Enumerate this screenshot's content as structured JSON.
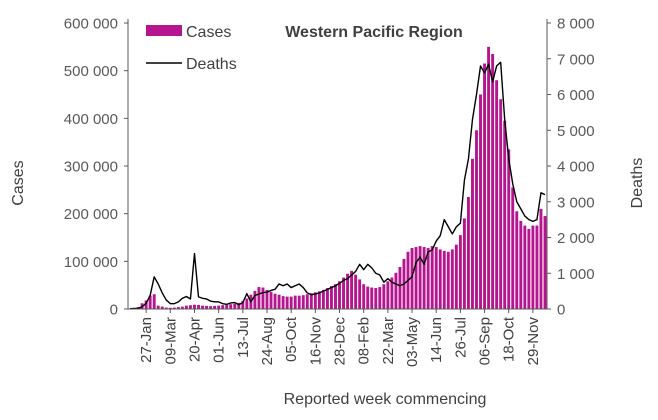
{
  "chart_data": {
    "type": "bar",
    "title": "Western Pacific Region",
    "xlabel": "Reported week commencing",
    "ylabel_left": "Cases",
    "ylabel_right": "Deaths",
    "ylim_left": [
      0,
      600000
    ],
    "ylim_right": [
      0,
      8000
    ],
    "yticks_left": [
      "0",
      "100 000",
      "200 000",
      "300 000",
      "400 000",
      "500 000",
      "600 000"
    ],
    "yticks_right": [
      "0",
      "1 000",
      "2 000",
      "3 000",
      "4 000",
      "5 000",
      "6 000",
      "7 000",
      "8 000"
    ],
    "grid": false,
    "legend_position": "top-left",
    "x_tick_labels": [
      {
        "index": 4,
        "label": "27-Jan"
      },
      {
        "index": 10,
        "label": "09-Mar"
      },
      {
        "index": 16,
        "label": "20-Apr"
      },
      {
        "index": 22,
        "label": "01-Jun"
      },
      {
        "index": 28,
        "label": "13-Jul"
      },
      {
        "index": 34,
        "label": "24-Aug"
      },
      {
        "index": 40,
        "label": "05-Oct"
      },
      {
        "index": 46,
        "label": "16-Nov"
      },
      {
        "index": 52,
        "label": "28-Dec"
      },
      {
        "index": 58,
        "label": "08-Feb"
      },
      {
        "index": 64,
        "label": "22-Mar"
      },
      {
        "index": 70,
        "label": "03-May"
      },
      {
        "index": 76,
        "label": "14-Jun"
      },
      {
        "index": 82,
        "label": "26-Jul"
      },
      {
        "index": 88,
        "label": "06-Sep"
      },
      {
        "index": 94,
        "label": "18-Oct"
      },
      {
        "index": 100,
        "label": "29-Nov"
      }
    ],
    "series": [
      {
        "name": "Cases",
        "type": "bar",
        "color": "#b5158e",
        "values": [
          500,
          1500,
          4000,
          12000,
          18000,
          28000,
          31000,
          7000,
          5000,
          3000,
          2500,
          3000,
          4000,
          5000,
          7000,
          8000,
          9000,
          8500,
          7000,
          6500,
          6000,
          6500,
          7000,
          8000,
          9000,
          10000,
          11000,
          13000,
          17000,
          22000,
          30000,
          38000,
          46000,
          45000,
          40000,
          36000,
          32000,
          30000,
          27000,
          26000,
          26000,
          28000,
          28000,
          29000,
          31000,
          33000,
          35000,
          37000,
          40000,
          44000,
          48000,
          52000,
          58000,
          66000,
          74000,
          80000,
          72000,
          62000,
          52000,
          47000,
          45000,
          44000,
          46000,
          52000,
          58000,
          66000,
          76000,
          88000,
          105000,
          120000,
          128000,
          130000,
          132000,
          130000,
          128000,
          132000,
          130000,
          125000,
          122000,
          120000,
          125000,
          135000,
          155000,
          190000,
          235000,
          315000,
          375000,
          450000,
          515000,
          550000,
          535000,
          480000,
          440000,
          395000,
          335000,
          255000,
          205000,
          185000,
          175000,
          168000,
          175000,
          175000,
          210000,
          195000
        ]
      },
      {
        "name": "Deaths",
        "type": "line",
        "color": "#000000",
        "values": [
          10,
          15,
          20,
          60,
          160,
          380,
          900,
          700,
          450,
          250,
          150,
          150,
          200,
          300,
          350,
          280,
          1550,
          340,
          300,
          280,
          220,
          200,
          200,
          150,
          130,
          170,
          180,
          120,
          180,
          430,
          200,
          380,
          420,
          460,
          470,
          520,
          550,
          700,
          650,
          700,
          600,
          650,
          700,
          600,
          450,
          400,
          420,
          450,
          500,
          550,
          600,
          650,
          720,
          800,
          850,
          950,
          1050,
          1250,
          1100,
          1250,
          1150,
          1000,
          950,
          750,
          850,
          750,
          700,
          650,
          700,
          800,
          900,
          1300,
          1450,
          1250,
          1600,
          1650,
          1900,
          2050,
          2500,
          2300,
          2100,
          2300,
          2400,
          3600,
          4200,
          5300,
          6000,
          6800,
          6600,
          6850,
          6350,
          6800,
          6900,
          5300,
          4200,
          3500,
          3000,
          2800,
          2600,
          2500,
          2450,
          2500,
          3250,
          3200
        ]
      }
    ]
  }
}
